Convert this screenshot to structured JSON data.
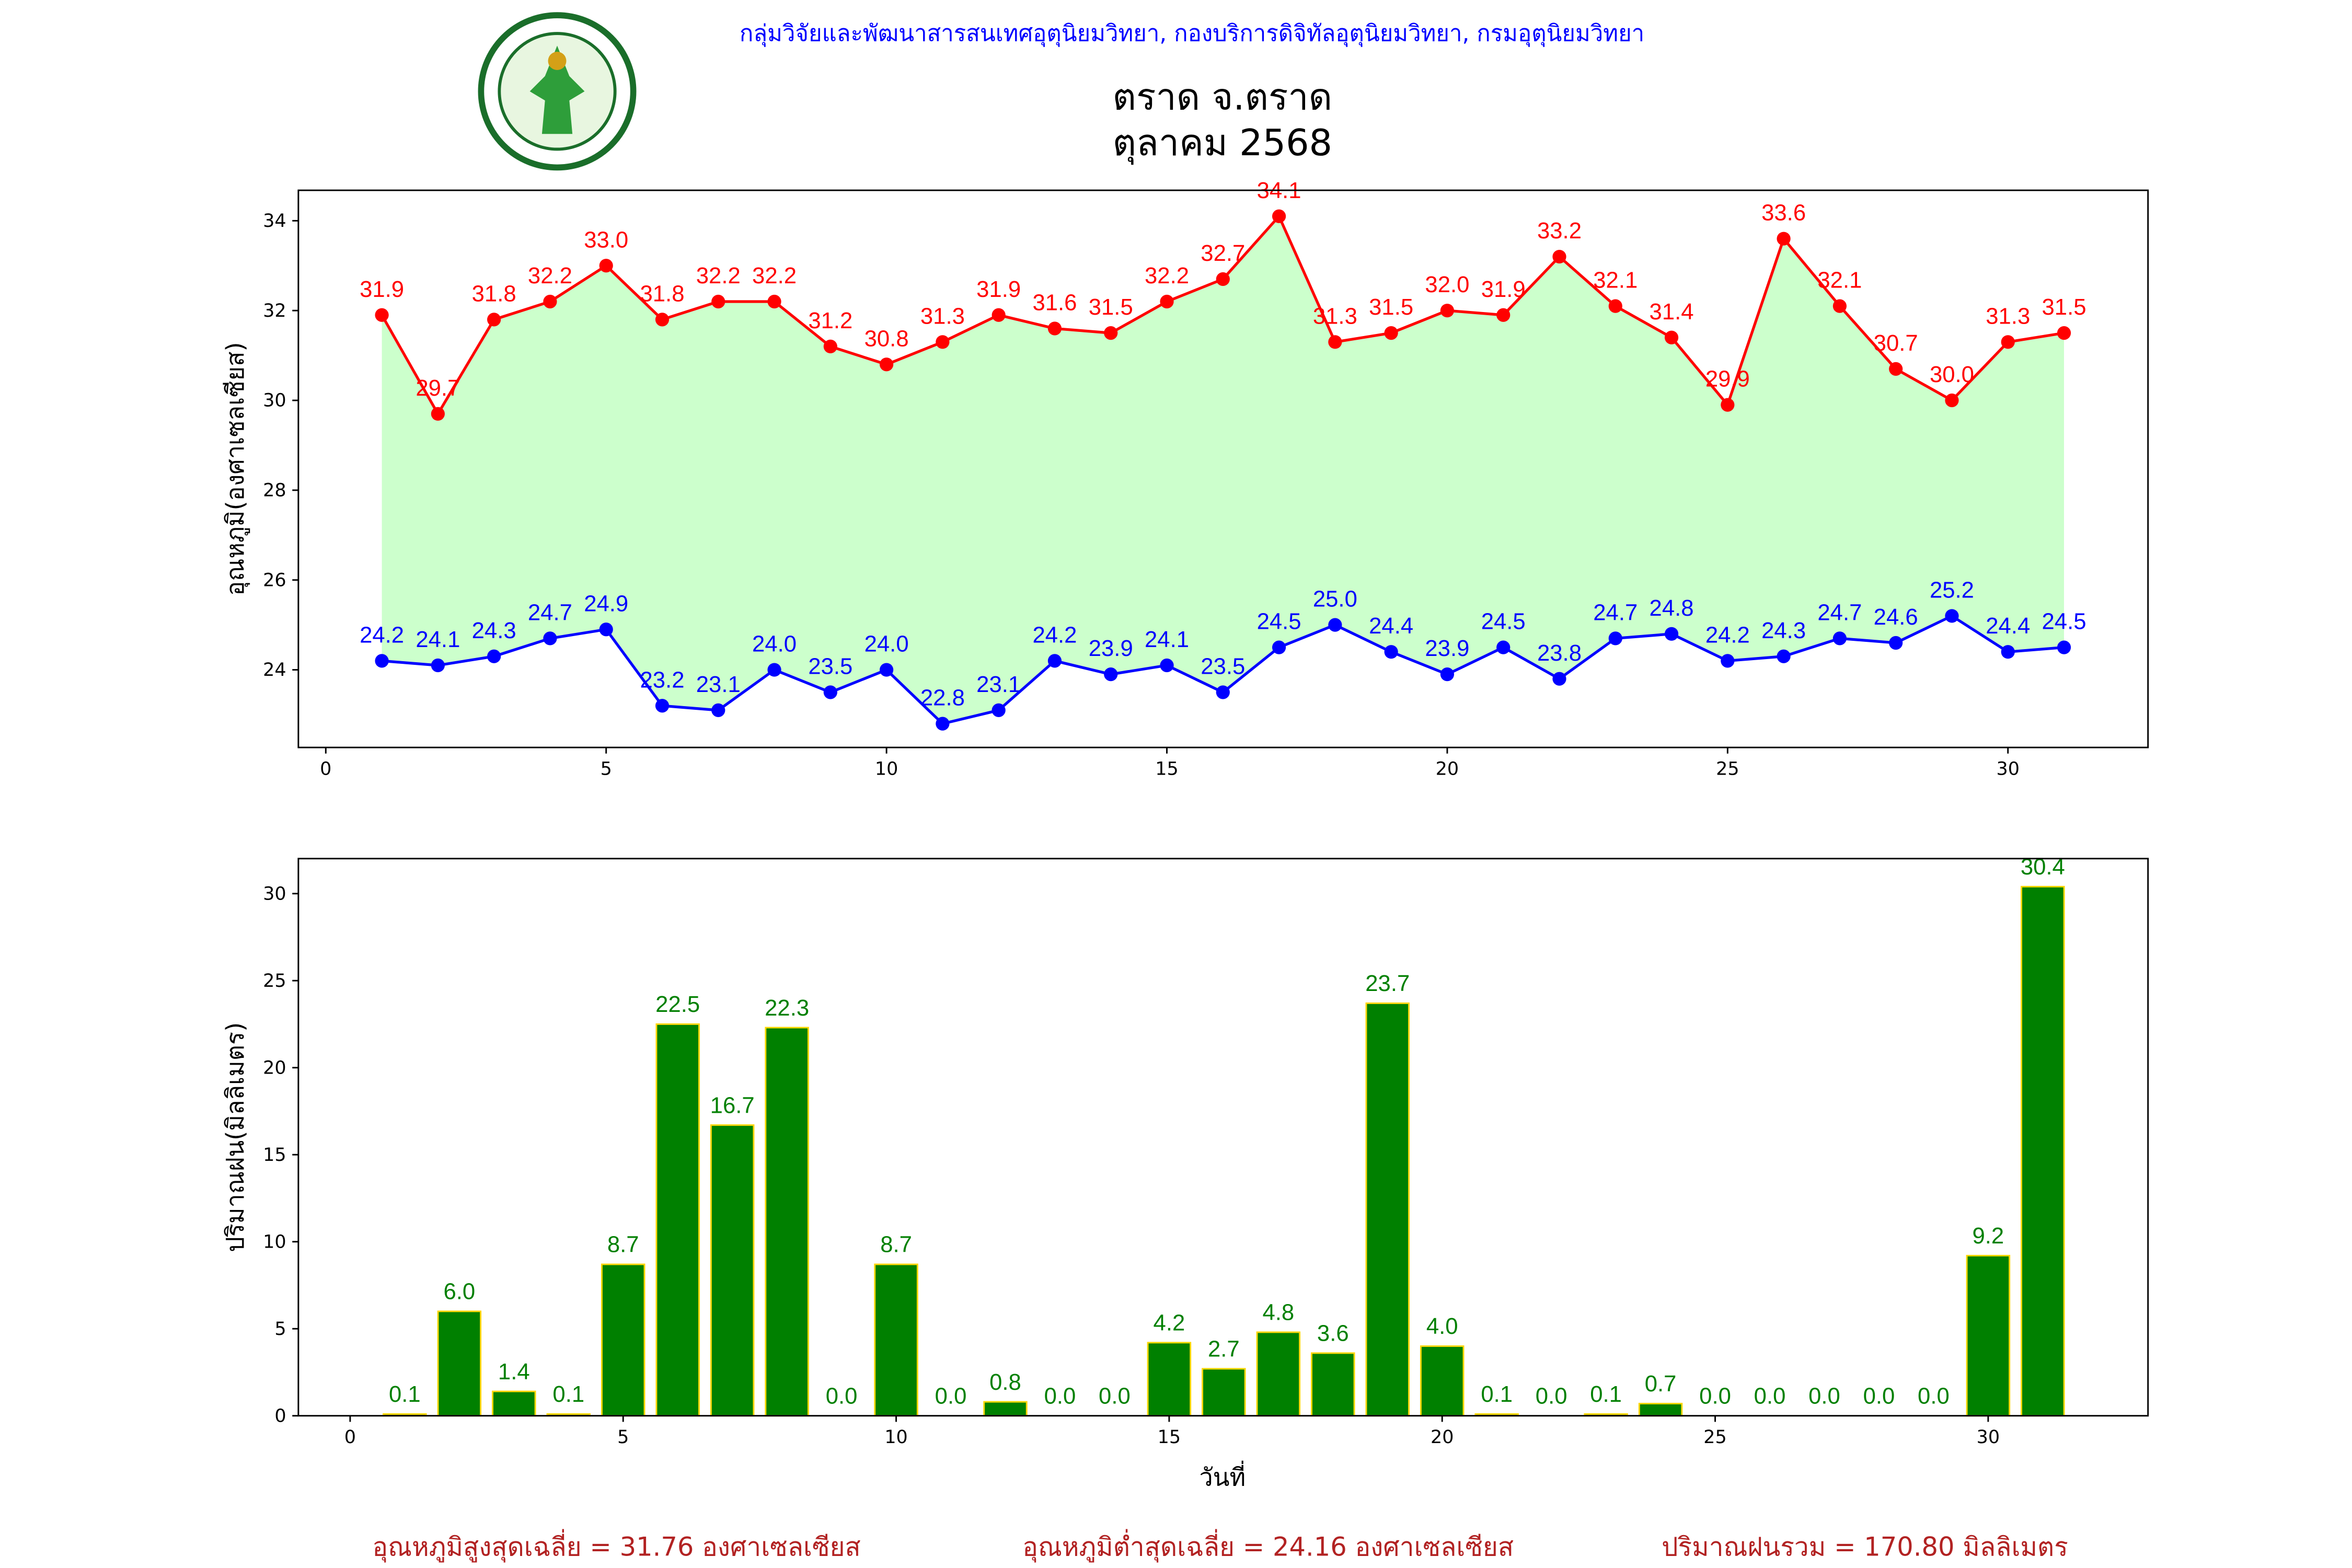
{
  "header": {
    "organization": "กลุ่มวิจัยและพัฒนาสารสนเทศอุตุนิยมวิทยา, กองบริการดิจิทัลอุตุนิยมวิทยา, กรมอุตุนิยมวิทยา",
    "logo_text": "กรมอุตุนิยมวิทยา METEOROLOGICAL DEPARTMENT",
    "title_line1": "ตราด จ.ตราด",
    "title_line2": "ตุลาคม 2568"
  },
  "colors": {
    "max": "#ff0000",
    "min": "#0000ff",
    "fill": "#ccffcc",
    "bar": "#008000",
    "bar_edge": "#ffd700",
    "footer": "#b22222",
    "header": "#0000ff"
  },
  "chart_data": [
    {
      "type": "line",
      "title": "ตราด จ.ตราด ตุลาคม 2568",
      "xlabel": "",
      "ylabel": "อุณหภูมิ(องศาเซลเซียส)",
      "xlim": [
        -1,
        33.5
      ],
      "ylim": [
        22.4,
        34.7
      ],
      "xticks": [
        0,
        5,
        10,
        15,
        20,
        25,
        30
      ],
      "yticks": [
        24,
        26,
        28,
        30,
        32,
        34
      ],
      "x": [
        1,
        2,
        3,
        4,
        5,
        6,
        7,
        8,
        9,
        10,
        11,
        12,
        13,
        14,
        15,
        16,
        17,
        18,
        19,
        20,
        21,
        22,
        23,
        24,
        25,
        26,
        27,
        28,
        29,
        30,
        31
      ],
      "series": [
        {
          "name": "max",
          "values": [
            31.9,
            29.7,
            31.8,
            32.2,
            33.0,
            31.8,
            32.2,
            32.2,
            31.2,
            30.8,
            31.3,
            31.9,
            31.6,
            31.5,
            32.2,
            32.7,
            34.1,
            31.3,
            31.5,
            32.0,
            31.9,
            33.2,
            32.1,
            31.4,
            29.9,
            33.6,
            32.1,
            30.7,
            30.0,
            31.3,
            31.5
          ]
        },
        {
          "name": "min",
          "values": [
            24.2,
            24.1,
            24.3,
            24.7,
            24.9,
            23.2,
            23.1,
            24.0,
            23.5,
            24.0,
            22.8,
            23.1,
            24.2,
            23.9,
            24.1,
            23.5,
            24.5,
            25.0,
            24.4,
            23.9,
            24.5,
            23.8,
            24.7,
            24.8,
            24.2,
            24.3,
            24.7,
            24.6,
            25.2,
            24.4,
            24.5
          ]
        }
      ],
      "grid": false
    },
    {
      "type": "bar",
      "xlabel": "วันที่",
      "ylabel": "ปริมาณฝน(มิลลิเมตร)",
      "xlim": [
        -0.5,
        33.4
      ],
      "ylim": [
        0,
        32
      ],
      "xticks": [
        0,
        5,
        10,
        15,
        20,
        25,
        30
      ],
      "yticks": [
        0,
        5,
        10,
        15,
        20,
        25,
        30
      ],
      "x": [
        1,
        2,
        3,
        4,
        5,
        6,
        7,
        8,
        9,
        10,
        11,
        12,
        13,
        14,
        15,
        16,
        17,
        18,
        19,
        20,
        21,
        22,
        23,
        24,
        25,
        26,
        27,
        28,
        29,
        30,
        31
      ],
      "values": [
        0.1,
        6.0,
        1.4,
        0.1,
        8.7,
        22.5,
        16.7,
        22.3,
        0.0,
        8.7,
        0.0,
        0.8,
        0.0,
        0.0,
        4.2,
        2.7,
        4.8,
        3.6,
        23.7,
        4.0,
        0.1,
        0.0,
        0.1,
        0.7,
        0.0,
        0.0,
        0.0,
        0.0,
        0.0,
        9.2,
        30.4
      ],
      "grid": false
    }
  ],
  "footer": {
    "avg_max": "อุณหภูมิสูงสุดเฉลี่ย = 31.76 องศาเซลเซียส",
    "avg_min": "อุณหภูมิต่ำสุดเฉลี่ย = 24.16 องศาเซลเซียส",
    "total_rain": "ปริมาณฝนรวม = 170.80 มิลลิเมตร"
  }
}
